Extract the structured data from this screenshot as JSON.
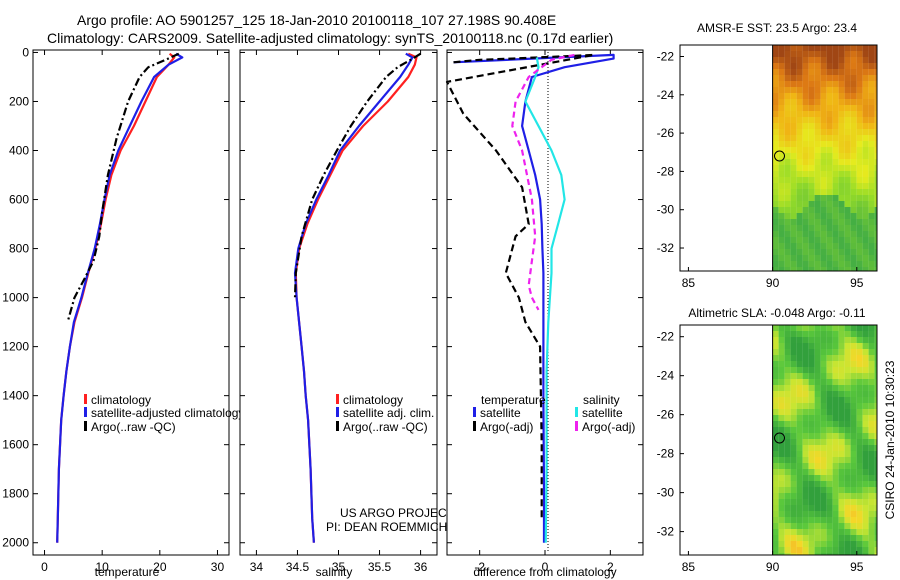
{
  "header": {
    "line1": "Argo profile: AO 5901257_125 18-Jan-2010 20100118_107 27.198S 90.408E",
    "line2": "Climatology: CARS2009. Satellite-adjusted climatology: synTS_20100118.nc (0.17d earlier)"
  },
  "colors": {
    "clim": "#ff2020",
    "sat": "#1f1fe6",
    "argo": "#000000",
    "sal_sat": "#22e6e6",
    "sal_argo": "#ee22ee"
  },
  "chart_data": [
    {
      "id": "temperature",
      "type": "line",
      "xlabel": "temperature",
      "ylabel": "",
      "xlim": [
        -2,
        32
      ],
      "ylim": [
        2050,
        -10
      ],
      "xticks": [
        0,
        10,
        20,
        30
      ],
      "xtick_labels": [
        "0",
        "10",
        "20",
        "30"
      ],
      "yticks": [
        0,
        200,
        400,
        600,
        800,
        1000,
        1200,
        1400,
        1600,
        1800,
        2000
      ],
      "ytick_labels": [
        "0",
        "200",
        "400",
        "600",
        "800",
        "1000",
        "1200",
        "1400",
        "1600",
        "1800",
        "2000"
      ],
      "series": [
        {
          "name": "climatology",
          "style": "clim",
          "x": [
            21.7,
            22.5,
            21.5,
            19.5,
            17.5,
            15.5,
            13.2,
            11.6,
            10.6,
            9.8,
            8.8,
            7.6,
            6.5,
            5.2,
            4.4,
            3.8,
            3.3,
            2.9,
            2.5,
            2.3,
            2.2
          ],
          "y": [
            5,
            20,
            50,
            100,
            200,
            300,
            400,
            500,
            600,
            700,
            800,
            900,
            1000,
            1100,
            1200,
            1300,
            1400,
            1500,
            1700,
            1900,
            2000
          ]
        },
        {
          "name": "satellite-adjusted climatology",
          "style": "sat",
          "x": [
            22.8,
            23.9,
            21.5,
            19.0,
            16.8,
            14.8,
            12.8,
            11.3,
            10.4,
            9.6,
            8.7,
            7.5,
            6.4,
            5.1,
            4.4,
            3.8,
            3.3,
            2.9,
            2.5,
            2.3,
            2.2
          ],
          "y": [
            5,
            20,
            50,
            100,
            200,
            300,
            400,
            500,
            600,
            700,
            800,
            900,
            1000,
            1100,
            1200,
            1300,
            1400,
            1500,
            1700,
            1900,
            2000
          ]
        },
        {
          "name": "Argo(..raw -QC)",
          "style": "argo",
          "x": [
            23.3,
            21.0,
            18.0,
            16.5,
            14.5,
            12.5,
            11.0,
            10.0,
            9.5,
            8.5,
            7.0,
            5.2,
            4.6,
            4.0
          ],
          "y": [
            5,
            30,
            60,
            100,
            200,
            350,
            500,
            650,
            750,
            850,
            920,
            1000,
            1050,
            1100
          ]
        }
      ],
      "legend": [
        "climatology",
        "satellite-adjusted climatology",
        "Argo(..raw -QC)"
      ]
    },
    {
      "id": "salinity",
      "type": "line",
      "xlabel": "salinity",
      "xlim": [
        33.8,
        36.2
      ],
      "ylim": [
        2050,
        -10
      ],
      "xticks": [
        34,
        34.5,
        35,
        35.5,
        36
      ],
      "xtick_labels": [
        "34",
        "34.5",
        "35",
        "35.5",
        "36"
      ],
      "yticks": [
        0,
        200,
        400,
        600,
        800,
        1000,
        1200,
        1400,
        1600,
        1800,
        2000
      ],
      "series": [
        {
          "name": "climatology",
          "style": "clim",
          "x": [
            35.85,
            35.95,
            35.93,
            35.85,
            35.6,
            35.3,
            35.05,
            34.9,
            34.75,
            34.62,
            34.52,
            34.48,
            34.49,
            34.52,
            34.55,
            34.58,
            34.6,
            34.63,
            34.66,
            34.68,
            34.7
          ],
          "y": [
            5,
            20,
            50,
            100,
            200,
            300,
            400,
            500,
            600,
            700,
            800,
            900,
            1000,
            1100,
            1200,
            1300,
            1400,
            1500,
            1700,
            1900,
            2000
          ]
        },
        {
          "name": "satellite adj. clim.",
          "style": "sat",
          "x": [
            35.82,
            35.9,
            35.85,
            35.75,
            35.5,
            35.25,
            35.02,
            34.88,
            34.73,
            34.6,
            34.51,
            34.47,
            34.49,
            34.52,
            34.55,
            34.58,
            34.6,
            34.63,
            34.66,
            34.68,
            34.7
          ],
          "y": [
            5,
            20,
            50,
            100,
            200,
            300,
            400,
            500,
            600,
            700,
            800,
            900,
            1000,
            1100,
            1200,
            1300,
            1400,
            1500,
            1700,
            1900,
            2000
          ]
        },
        {
          "name": "Argo(..raw -QC)",
          "style": "argo",
          "x": [
            36.0,
            35.88,
            35.72,
            35.58,
            35.35,
            35.15,
            34.98,
            34.82,
            34.68,
            34.55,
            34.48,
            34.47
          ],
          "y": [
            5,
            30,
            60,
            100,
            200,
            300,
            400,
            500,
            600,
            750,
            900,
            1000
          ]
        }
      ],
      "legend": [
        "climatology",
        "satellite adj. clim.",
        "Argo(..raw -QC)"
      ]
    },
    {
      "id": "difference",
      "type": "line",
      "xlabel": "difference from climatology",
      "xlim": [
        -3.0,
        3.0
      ],
      "ylim": [
        2050,
        -10
      ],
      "xticks": [
        -2,
        0,
        2
      ],
      "xtick_labels": [
        "-2",
        "0",
        "2"
      ],
      "yticks": [
        0,
        200,
        400,
        600,
        800,
        1000,
        1200,
        1400,
        1600,
        1800,
        2000
      ],
      "series": [
        {
          "name": "temperature satellite",
          "style": "sat",
          "x": [
            -2.8,
            2.1,
            2.1,
            0.6,
            -0.4,
            -0.6,
            -0.7,
            -0.5,
            -0.3,
            -0.15,
            -0.1,
            -0.08,
            -0.05,
            -0.05,
            -0.05,
            -0.03,
            -0.03
          ],
          "y": [
            40,
            10,
            25,
            60,
            100,
            200,
            300,
            400,
            500,
            600,
            700,
            800,
            900,
            1000,
            1400,
            1800,
            2000
          ]
        },
        {
          "name": "temperature Argo(-adj)",
          "style": "argo",
          "x": [
            -2.8,
            -2.0,
            -1.0,
            1.5,
            -3.0,
            -2.5,
            -1.5,
            -0.7,
            -0.5,
            -0.9,
            -1.2,
            -0.8,
            -0.6,
            -0.15,
            -0.1,
            -0.1
          ],
          "y": [
            40,
            30,
            25,
            10,
            120,
            250,
            400,
            550,
            700,
            750,
            900,
            1000,
            1100,
            1200,
            1600,
            1900
          ]
        },
        {
          "name": "salinity satellite",
          "style": "sal_sat",
          "x": [
            -0.25,
            -0.2,
            -0.3,
            -0.6,
            -0.2,
            0.2,
            0.5,
            0.6,
            0.4,
            0.2,
            0.2,
            0.15,
            0.1,
            0.05,
            0.05,
            0.02
          ],
          "y": [
            20,
            60,
            100,
            200,
            300,
            400,
            500,
            600,
            700,
            800,
            900,
            1000,
            1100,
            1300,
            1700,
            2000
          ]
        },
        {
          "name": "salinity Argo(-adj)",
          "style": "sal_argo",
          "x": [
            0.9,
            0.2,
            -0.5,
            -0.9,
            -1.0,
            -0.7,
            -0.4,
            -0.3,
            -0.4,
            -0.5,
            -0.4,
            -0.2
          ],
          "y": [
            10,
            30,
            100,
            200,
            300,
            400,
            600,
            750,
            850,
            950,
            1000,
            1050
          ]
        }
      ],
      "legend_title_left": "temperature",
      "legend_title_right": "salinity",
      "legend": [
        "satellite",
        "Argo(-adj)",
        "satellite",
        "Argo(-adj)"
      ]
    },
    {
      "id": "sst_map",
      "type": "heatmap",
      "title": "AMSR-E SST: 23.5 Argo: 23.4",
      "xlim": [
        84.5,
        96.2
      ],
      "ylim": [
        -33.2,
        -21.4
      ],
      "xticks": [
        85,
        90,
        95
      ],
      "xtick_labels": [
        "85",
        "90",
        "95"
      ],
      "yticks": [
        -22,
        -24,
        -26,
        -28,
        -30,
        -32
      ],
      "ytick_labels": [
        "-22",
        "-24",
        "-26",
        "-28",
        "-30",
        "-32"
      ],
      "data_lon_range": [
        90,
        96.2
      ],
      "argo_position": [
        90.408,
        -27.198
      ]
    },
    {
      "id": "sla_map",
      "type": "heatmap",
      "title": "Altimetric SLA: -0.048 Argo: -0.11",
      "xlim": [
        84.5,
        96.2
      ],
      "ylim": [
        -33.2,
        -21.4
      ],
      "xticks": [
        85,
        90,
        95
      ],
      "xtick_labels": [
        "85",
        "90",
        "95"
      ],
      "yticks": [
        -22,
        -24,
        -26,
        -28,
        -30,
        -32
      ],
      "ytick_labels": [
        "-22",
        "-24",
        "-26",
        "-28",
        "-30",
        "-32"
      ],
      "data_lon_range": [
        90,
        96.2
      ],
      "argo_position": [
        90.408,
        -27.198
      ]
    }
  ],
  "credits": {
    "line1": "US ARGO PROJECT",
    "line2": "PI: DEAN ROEMMICH",
    "stamp": "CSIRO 24-Jan-2010 10:30:23"
  }
}
